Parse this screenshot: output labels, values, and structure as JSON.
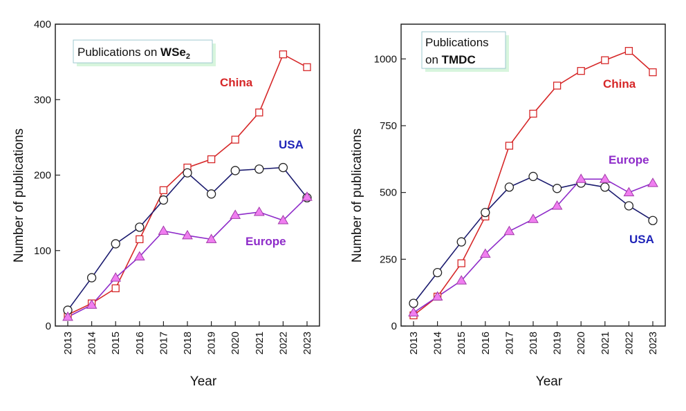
{
  "chart_data": [
    {
      "type": "line",
      "title_prefix": "Publications on ",
      "title_bold": "WSe",
      "title_subscript": "2",
      "xlabel": "Year",
      "ylabel": "Number of publications",
      "categories": [
        "2013",
        "2014",
        "2015",
        "2016",
        "2017",
        "2018",
        "2019",
        "2020",
        "2021",
        "2022",
        "2023"
      ],
      "ylim": [
        0,
        400
      ],
      "yticks": [
        0,
        100,
        200,
        300,
        400
      ],
      "yticks_text": [
        "0",
        "100",
        "200",
        "300",
        "400"
      ],
      "series": [
        {
          "name": "China",
          "marker": "square",
          "color": "#d62728",
          "values": [
            15,
            30,
            50,
            115,
            180,
            210,
            221,
            247,
            283,
            360,
            343
          ]
        },
        {
          "name": "USA",
          "marker": "circle",
          "color": "#1a1a6e",
          "values": [
            21,
            64,
            109,
            131,
            167,
            203,
            175,
            206,
            208,
            210,
            170
          ]
        },
        {
          "name": "Europe",
          "marker": "triangle",
          "color": "#8e2bc9",
          "values": [
            12,
            28,
            64,
            92,
            126,
            120,
            115,
            147,
            151,
            140,
            171
          ]
        }
      ]
    },
    {
      "type": "line",
      "title_line1": "Publications",
      "title_prefix": "on ",
      "title_bold": "TMDC",
      "xlabel": "Year",
      "ylabel": "Number of publications",
      "categories": [
        "2013",
        "2014",
        "2015",
        "2016",
        "2017",
        "2018",
        "2019",
        "2020",
        "2021",
        "2022",
        "2023"
      ],
      "ylim": [
        0,
        1130
      ],
      "yticks": [
        0,
        250,
        500,
        750,
        1000
      ],
      "yticks_text": [
        "0",
        "250",
        "500",
        "750",
        "1000"
      ],
      "series": [
        {
          "name": "China",
          "marker": "square",
          "color": "#d62728",
          "values": [
            40,
            110,
            235,
            410,
            675,
            795,
            900,
            955,
            995,
            1030,
            950
          ]
        },
        {
          "name": "USA",
          "marker": "circle",
          "color": "#1a1a6e",
          "values": [
            85,
            200,
            315,
            425,
            520,
            560,
            515,
            535,
            520,
            450,
            395
          ]
        },
        {
          "name": "Europe",
          "marker": "triangle",
          "color": "#8e2bc9",
          "values": [
            50,
            110,
            170,
            270,
            355,
            400,
            450,
            550,
            550,
            500,
            535
          ]
        }
      ]
    }
  ]
}
